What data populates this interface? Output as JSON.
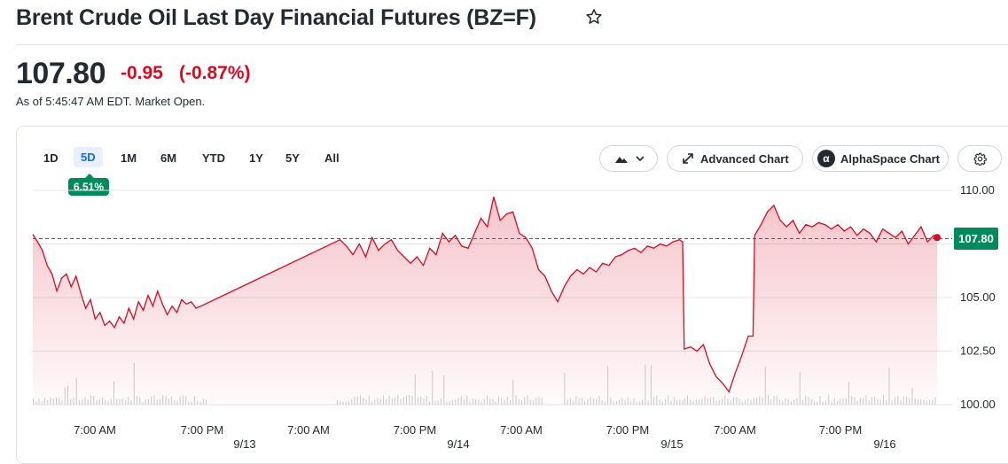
{
  "header": {
    "title": "Brent Crude Oil Last Day Financial Futures (BZ=F)",
    "price": "107.80",
    "change": "-0.95",
    "change_pct": "(-0.87%)",
    "as_of": "As of 5:45:47 AM EDT. Market Open."
  },
  "toolbar": {
    "ranges": [
      "1D",
      "5D",
      "1M",
      "6M",
      "YTD",
      "1Y",
      "5Y",
      "All"
    ],
    "active_range": "5D",
    "range_change": "6.51%",
    "advanced_chart": "Advanced Chart",
    "alphaspace_chart": "AlphaSpace Chart"
  },
  "colors": {
    "line": "#d60a22",
    "positive": "#008a5c",
    "negative": "#d60a22",
    "accent": "#0f69ff"
  },
  "chart_data": {
    "type": "area",
    "y_ticks": [
      "110.00",
      "107.50",
      "105.00",
      "102.50",
      "100.00"
    ],
    "ylim": [
      100,
      110
    ],
    "reference_price": 107.75,
    "last_price_label": "107.80",
    "x_time_ticks": [
      "7:00 AM",
      "7:00 PM",
      "7:00 AM",
      "7:00 PM",
      "7:00 AM",
      "7:00 PM",
      "7:00 AM",
      "7:00 PM"
    ],
    "x_date_ticks": [
      "9/13",
      "9/14",
      "9/15",
      "9/16"
    ],
    "series": [
      {
        "values": [
          [
            0.0,
            107.95
          ],
          [
            0.3,
            107.6
          ],
          [
            0.6,
            107.2
          ],
          [
            0.9,
            106.5
          ],
          [
            1.2,
            106.1
          ],
          [
            1.5,
            105.3
          ],
          [
            1.8,
            105.9
          ],
          [
            2.1,
            106.1
          ],
          [
            2.4,
            105.5
          ],
          [
            2.7,
            106.0
          ],
          [
            3.0,
            105.2
          ],
          [
            3.3,
            104.5
          ],
          [
            3.6,
            104.9
          ],
          [
            3.9,
            104.0
          ],
          [
            4.2,
            104.3
          ],
          [
            4.5,
            103.7
          ],
          [
            4.8,
            103.9
          ],
          [
            5.1,
            103.6
          ],
          [
            5.4,
            104.1
          ],
          [
            5.7,
            103.8
          ],
          [
            6.0,
            104.5
          ],
          [
            6.3,
            104.0
          ],
          [
            6.6,
            104.8
          ],
          [
            6.9,
            104.4
          ],
          [
            7.2,
            105.1
          ],
          [
            7.5,
            104.6
          ],
          [
            7.8,
            105.3
          ],
          [
            8.1,
            104.7
          ],
          [
            8.4,
            104.2
          ],
          [
            8.7,
            104.6
          ],
          [
            9.0,
            104.3
          ],
          [
            9.3,
            104.9
          ],
          [
            9.6,
            104.7
          ],
          [
            9.9,
            104.8
          ],
          [
            10.2,
            104.5
          ],
          [
            10.5,
            104.6
          ],
          [
            19.2,
            107.7
          ],
          [
            19.6,
            107.4
          ],
          [
            20.0,
            107.0
          ],
          [
            20.4,
            107.5
          ],
          [
            20.8,
            106.9
          ],
          [
            21.2,
            107.8
          ],
          [
            21.6,
            107.2
          ],
          [
            22.0,
            107.5
          ],
          [
            22.4,
            107.7
          ],
          [
            22.8,
            107.2
          ],
          [
            23.2,
            106.9
          ],
          [
            23.6,
            106.6
          ],
          [
            24.0,
            106.9
          ],
          [
            24.4,
            106.5
          ],
          [
            24.8,
            107.3
          ],
          [
            25.2,
            107.0
          ],
          [
            25.6,
            108.0
          ],
          [
            26.0,
            107.6
          ],
          [
            26.4,
            107.9
          ],
          [
            26.8,
            107.4
          ],
          [
            27.2,
            107.3
          ],
          [
            27.6,
            108.0
          ],
          [
            28.0,
            108.7
          ],
          [
            28.4,
            108.3
          ],
          [
            28.8,
            109.7
          ],
          [
            29.2,
            108.6
          ],
          [
            29.6,
            108.9
          ],
          [
            30.0,
            109.0
          ],
          [
            30.4,
            108.0
          ],
          [
            30.8,
            107.8
          ],
          [
            31.2,
            107.3
          ],
          [
            31.6,
            106.3
          ],
          [
            32.0,
            106.0
          ],
          [
            32.4,
            105.3
          ],
          [
            32.8,
            104.8
          ],
          [
            33.2,
            105.5
          ],
          [
            33.6,
            106.0
          ],
          [
            34.0,
            106.3
          ],
          [
            34.4,
            106.1
          ],
          [
            34.8,
            106.4
          ],
          [
            35.2,
            106.2
          ],
          [
            35.6,
            106.6
          ],
          [
            36.0,
            106.5
          ],
          [
            36.4,
            106.9
          ],
          [
            36.8,
            107.0
          ],
          [
            37.2,
            107.2
          ],
          [
            37.6,
            107.3
          ],
          [
            38.0,
            107.1
          ],
          [
            38.4,
            107.4
          ],
          [
            38.8,
            107.3
          ],
          [
            39.2,
            107.5
          ],
          [
            39.6,
            107.4
          ],
          [
            40.0,
            107.6
          ],
          [
            40.4,
            107.7
          ],
          [
            40.6,
            107.6
          ],
          [
            40.7,
            102.6
          ],
          [
            41.1,
            102.7
          ],
          [
            41.5,
            102.5
          ],
          [
            41.9,
            102.8
          ],
          [
            42.3,
            101.9
          ],
          [
            42.7,
            101.3
          ],
          [
            43.1,
            101.0
          ],
          [
            43.5,
            100.6
          ],
          [
            43.9,
            101.5
          ],
          [
            44.3,
            102.3
          ],
          [
            44.7,
            103.2
          ],
          [
            45.0,
            103.2
          ],
          [
            45.1,
            107.9
          ],
          [
            45.5,
            108.4
          ],
          [
            45.9,
            109.0
          ],
          [
            46.3,
            109.3
          ],
          [
            46.7,
            108.6
          ],
          [
            47.1,
            108.3
          ],
          [
            47.5,
            108.6
          ],
          [
            47.9,
            108.0
          ],
          [
            48.3,
            108.4
          ],
          [
            48.7,
            108.3
          ],
          [
            49.1,
            108.5
          ],
          [
            49.5,
            108.4
          ],
          [
            49.9,
            108.2
          ],
          [
            50.3,
            108.4
          ],
          [
            50.7,
            108.1
          ],
          [
            51.1,
            108.3
          ],
          [
            51.5,
            107.9
          ],
          [
            51.9,
            108.2
          ],
          [
            52.3,
            108.0
          ],
          [
            52.7,
            107.6
          ],
          [
            53.1,
            108.2
          ],
          [
            53.5,
            108.0
          ],
          [
            53.9,
            107.8
          ],
          [
            54.3,
            108.1
          ],
          [
            54.7,
            107.5
          ],
          [
            55.1,
            107.9
          ],
          [
            55.5,
            108.3
          ],
          [
            55.9,
            107.6
          ],
          [
            56.3,
            107.9
          ],
          [
            56.5,
            107.8
          ]
        ]
      }
    ]
  }
}
